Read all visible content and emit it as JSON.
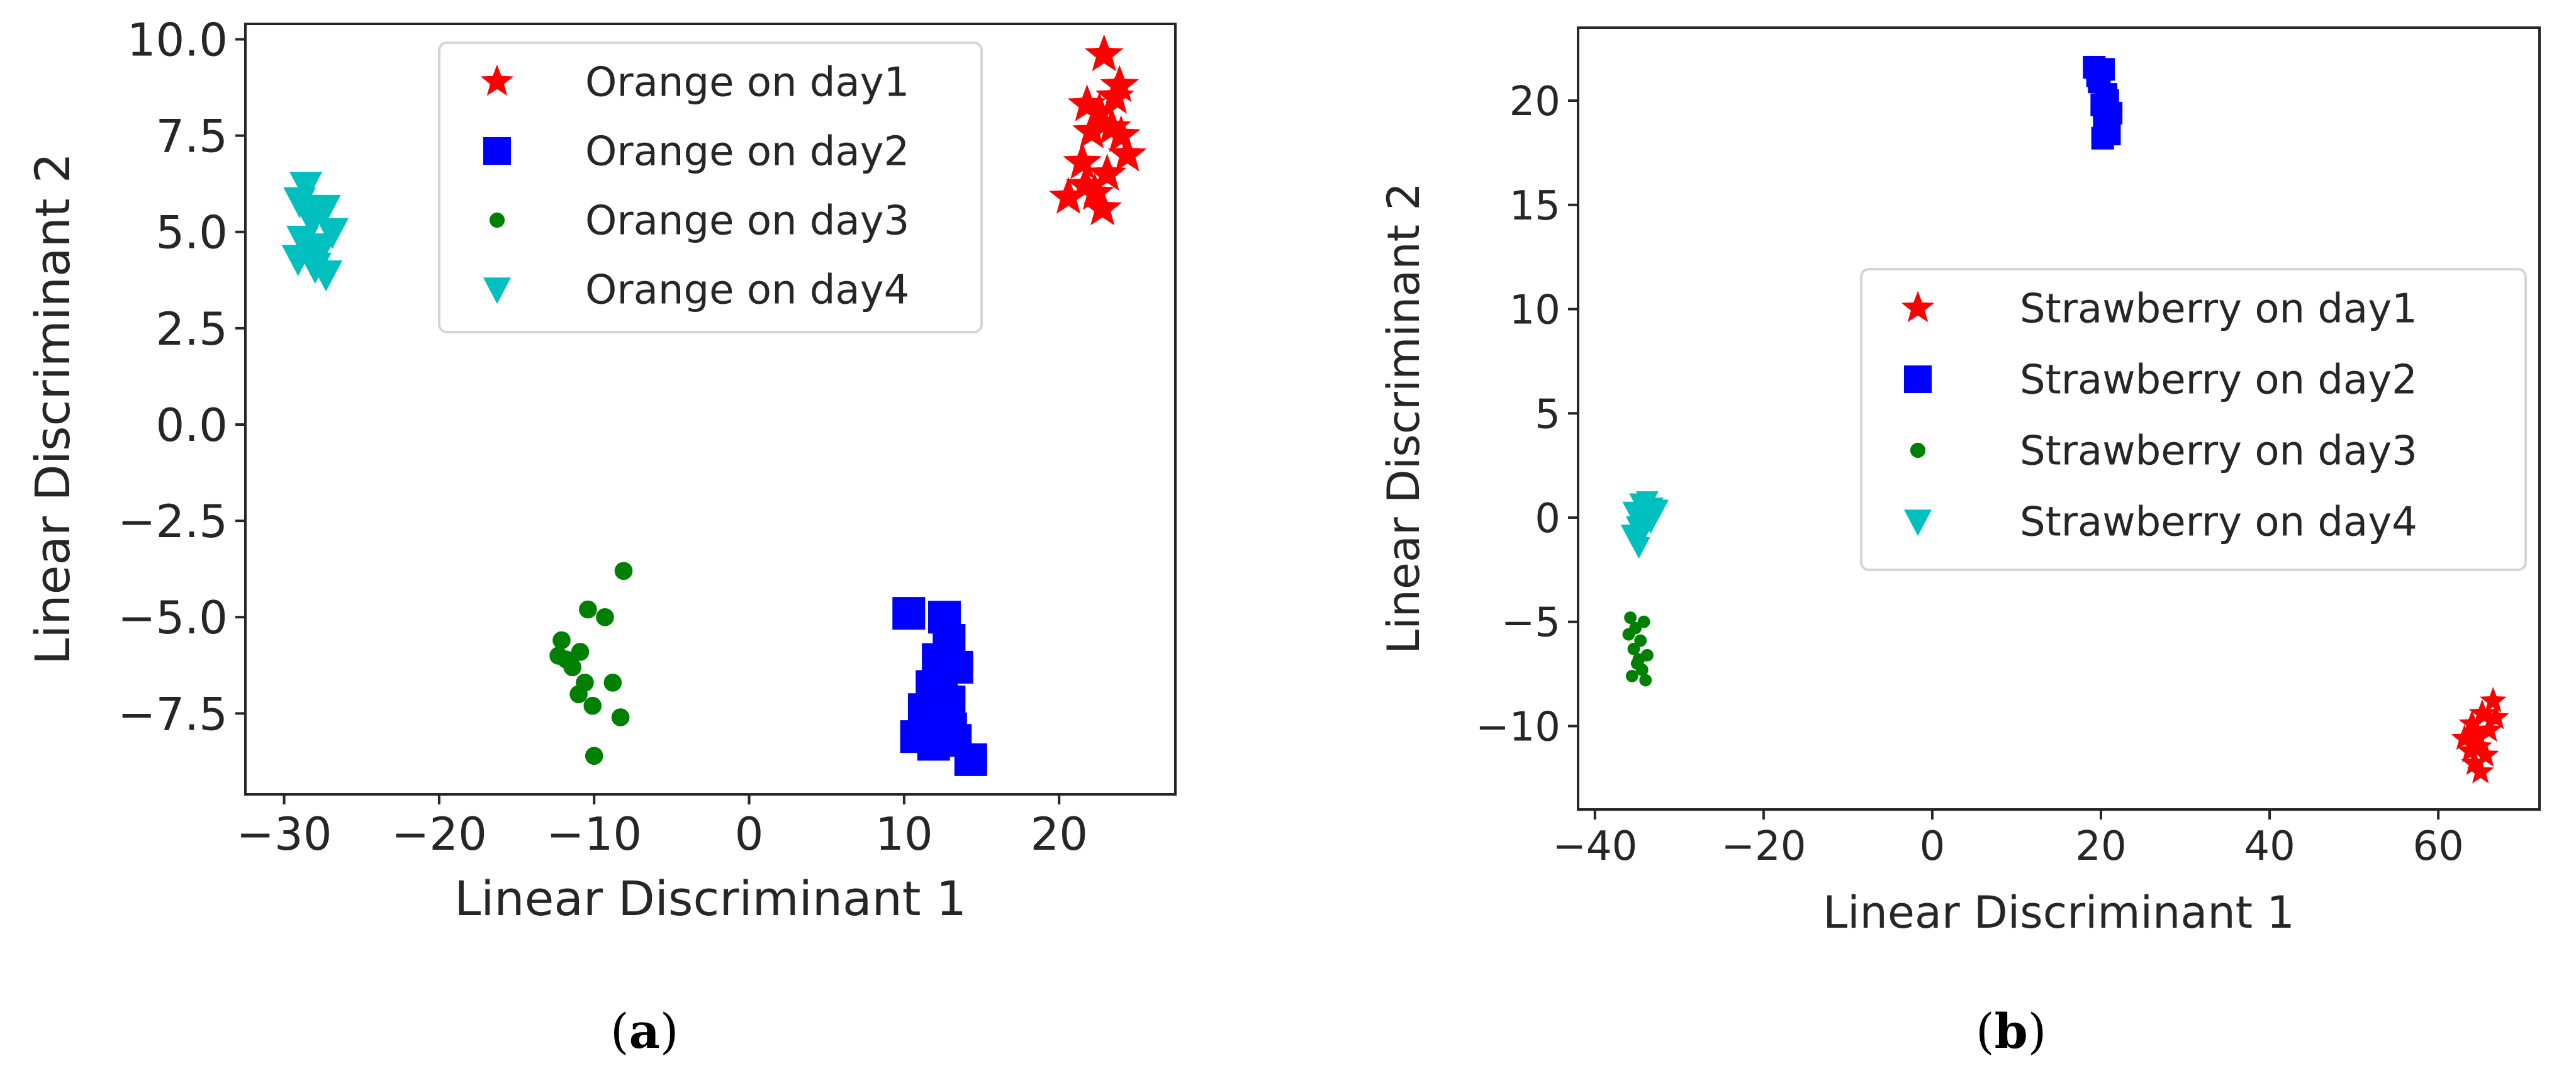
{
  "chart_data": [
    {
      "type": "scatter",
      "panel_label": "a",
      "title": "",
      "xlabel": "Linear Discriminant 1",
      "ylabel": "Linear Discriminant 2",
      "xlim": [
        -32.5,
        27.5
      ],
      "ylim": [
        -9.6,
        10.4
      ],
      "xticks": [
        -30,
        -20,
        -10,
        0,
        10,
        20
      ],
      "xtick_labels": [
        "−30",
        "−20",
        "−10",
        "0",
        "10",
        "20"
      ],
      "yticks": [
        10.0,
        7.5,
        5.0,
        2.5,
        0.0,
        -2.5,
        -5.0,
        -7.5
      ],
      "ytick_labels": [
        "10.0",
        "7.5",
        "5.0",
        "2.5",
        "0.0",
        "−2.5",
        "−5.0",
        "−7.5"
      ],
      "legend_position": "top-center",
      "series": [
        {
          "name": "Orange on day1",
          "marker": "star",
          "color": "#ff0000",
          "points": [
            [
              22.9,
              9.6
            ],
            [
              23.9,
              8.8
            ],
            [
              21.8,
              8.3
            ],
            [
              22.6,
              8.1
            ],
            [
              23.4,
              7.7
            ],
            [
              22.1,
              7.6
            ],
            [
              24.4,
              7.0
            ],
            [
              21.5,
              6.8
            ],
            [
              23.1,
              6.5
            ],
            [
              21.7,
              6.2
            ],
            [
              22.3,
              6.0
            ],
            [
              20.6,
              5.9
            ],
            [
              22.8,
              5.6
            ],
            [
              23.6,
              8.5
            ],
            [
              24.0,
              7.5
            ]
          ]
        },
        {
          "name": "Orange on day2",
          "marker": "square",
          "color": "#0000ff",
          "points": [
            [
              10.3,
              -4.9
            ],
            [
              12.6,
              -5.0
            ],
            [
              12.9,
              -5.6
            ],
            [
              12.2,
              -6.1
            ],
            [
              13.4,
              -6.3
            ],
            [
              11.8,
              -6.8
            ],
            [
              12.9,
              -7.2
            ],
            [
              11.3,
              -7.4
            ],
            [
              12.6,
              -7.6
            ],
            [
              10.8,
              -8.1
            ],
            [
              11.9,
              -8.3
            ],
            [
              13.3,
              -8.2
            ],
            [
              14.3,
              -8.7
            ],
            [
              12.4,
              -6.9
            ],
            [
              13.0,
              -7.9
            ]
          ]
        },
        {
          "name": "Orange on day3",
          "marker": "circle",
          "color": "#008000",
          "points": [
            [
              -8.1,
              -3.8
            ],
            [
              -9.3,
              -5.0
            ],
            [
              -10.4,
              -4.8
            ],
            [
              -12.1,
              -5.6
            ],
            [
              -10.9,
              -5.9
            ],
            [
              -11.4,
              -6.3
            ],
            [
              -12.3,
              -6.0
            ],
            [
              -10.6,
              -6.7
            ],
            [
              -8.8,
              -6.7
            ],
            [
              -11.0,
              -7.0
            ],
            [
              -10.1,
              -7.3
            ],
            [
              -8.3,
              -7.6
            ],
            [
              -10.0,
              -8.6
            ],
            [
              -11.8,
              -6.1
            ]
          ]
        },
        {
          "name": "Orange on day4",
          "marker": "triangle_down",
          "color": "#00bfbf",
          "points": [
            [
              -28.6,
              6.2
            ],
            [
              -29.0,
              5.8
            ],
            [
              -27.4,
              5.6
            ],
            [
              -28.2,
              5.3
            ],
            [
              -26.9,
              5.0
            ],
            [
              -28.8,
              4.8
            ],
            [
              -27.6,
              4.6
            ],
            [
              -29.1,
              4.3
            ],
            [
              -28.0,
              4.1
            ],
            [
              -27.3,
              3.9
            ],
            [
              -28.4,
              5.6
            ],
            [
              -27.9,
              4.4
            ]
          ]
        }
      ]
    },
    {
      "type": "scatter",
      "panel_label": "b",
      "title": "",
      "xlabel": "Linear Discriminant 1",
      "ylabel": "Linear Discriminant 2",
      "xlim": [
        -42,
        72
      ],
      "ylim": [
        -14,
        23.5
      ],
      "xticks": [
        -40,
        -20,
        0,
        20,
        40,
        60
      ],
      "xtick_labels": [
        "−40",
        "−20",
        "0",
        "20",
        "40",
        "60"
      ],
      "yticks": [
        20,
        15,
        10,
        5,
        0,
        -5,
        -10
      ],
      "ytick_labels": [
        "20",
        "15",
        "10",
        "5",
        "0",
        "−5",
        "−10"
      ],
      "legend_position": "center-right",
      "series": [
        {
          "name": "Strawberry on day1",
          "marker": "star",
          "color": "#ff0000",
          "points": [
            [
              66.5,
              -8.8
            ],
            [
              65.2,
              -9.4
            ],
            [
              64.0,
              -9.9
            ],
            [
              66.0,
              -10.2
            ],
            [
              63.1,
              -10.6
            ],
            [
              64.8,
              -11.0
            ],
            [
              65.6,
              -11.4
            ],
            [
              64.3,
              -11.8
            ],
            [
              65.0,
              -12.2
            ],
            [
              64.6,
              -10.4
            ],
            [
              66.8,
              -9.6
            ],
            [
              63.8,
              -11.2
            ]
          ]
        },
        {
          "name": "Strawberry on day2",
          "marker": "square",
          "color": "#0000ff",
          "points": [
            [
              19.2,
              21.6
            ],
            [
              20.3,
              21.5
            ],
            [
              19.8,
              20.9
            ],
            [
              20.6,
              20.3
            ],
            [
              20.1,
              19.8
            ],
            [
              21.2,
              19.4
            ],
            [
              20.4,
              18.9
            ],
            [
              21.0,
              18.4
            ],
            [
              20.2,
              18.2
            ],
            [
              19.6,
              21.2
            ],
            [
              20.8,
              20.0
            ],
            [
              20.9,
              19.0
            ]
          ]
        },
        {
          "name": "Strawberry on day3",
          "marker": "circle",
          "color": "#008000",
          "points": [
            [
              -35.8,
              -4.8
            ],
            [
              -34.2,
              -5.0
            ],
            [
              -36.0,
              -5.6
            ],
            [
              -34.6,
              -5.9
            ],
            [
              -35.4,
              -6.3
            ],
            [
              -33.8,
              -6.6
            ],
            [
              -35.0,
              -7.0
            ],
            [
              -34.4,
              -7.3
            ],
            [
              -35.6,
              -7.6
            ],
            [
              -34.0,
              -7.8
            ],
            [
              -35.2,
              -5.3
            ],
            [
              -34.8,
              -6.8
            ]
          ]
        },
        {
          "name": "Strawberry on day4",
          "marker": "triangle_down",
          "color": "#00bfbf",
          "points": [
            [
              -34.6,
              0.7
            ],
            [
              -33.2,
              0.5
            ],
            [
              -35.4,
              0.3
            ],
            [
              -34.0,
              0.1
            ],
            [
              -33.4,
              -0.2
            ],
            [
              -35.0,
              -0.4
            ],
            [
              -34.4,
              -0.7
            ],
            [
              -35.2,
              -1.0
            ],
            [
              -34.8,
              -1.4
            ],
            [
              -33.8,
              0.8
            ],
            [
              -32.6,
              0.4
            ],
            [
              -34.2,
              -0.3
            ],
            [
              -35.6,
              -0.8
            ]
          ]
        }
      ]
    }
  ]
}
